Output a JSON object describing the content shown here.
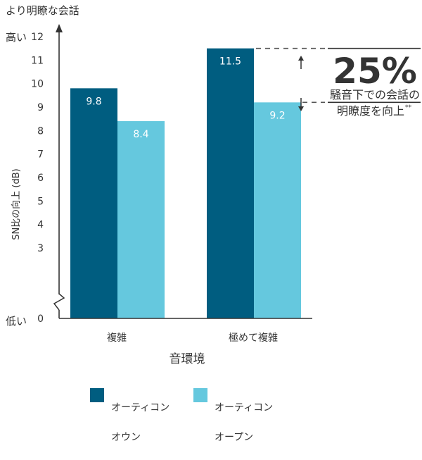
{
  "colors": {
    "series_open": "#65C8DE",
    "series_on": "#005D80",
    "axis": "#333333",
    "dash": "#555555"
  },
  "chart_data": {
    "type": "bar",
    "title": "より明瞭な会話",
    "xlabel": "音環境",
    "ylabel": "SN比の向上 (dB)",
    "ylim": [
      0,
      12
    ],
    "axis_break": true,
    "yticks": [
      "0",
      "3",
      "4",
      "5",
      "6",
      "7",
      "8",
      "9",
      "10",
      "11",
      "12"
    ],
    "y_high_label": "高い",
    "y_low_label": "低い",
    "categories": [
      "複雑",
      "極めて複雑"
    ],
    "series": [
      {
        "name": "オーティコン オウン",
        "values": [
          9.8,
          11.5
        ],
        "labels": [
          "9.8",
          "11.5"
        ]
      },
      {
        "name": "オーティコン オープン",
        "values": [
          8.4,
          9.2
        ],
        "labels": [
          "8.4",
          "9.2"
        ]
      }
    ],
    "annotation": {
      "big_text": "25%",
      "text_line1": "騒音下での会話の",
      "text_line2": "明瞭度を向上",
      "text_sup": "**"
    },
    "legend": [
      {
        "line1": "オーティコン",
        "line2": "オウン"
      },
      {
        "line1": "オーティコン",
        "line2": "オープン"
      }
    ]
  }
}
